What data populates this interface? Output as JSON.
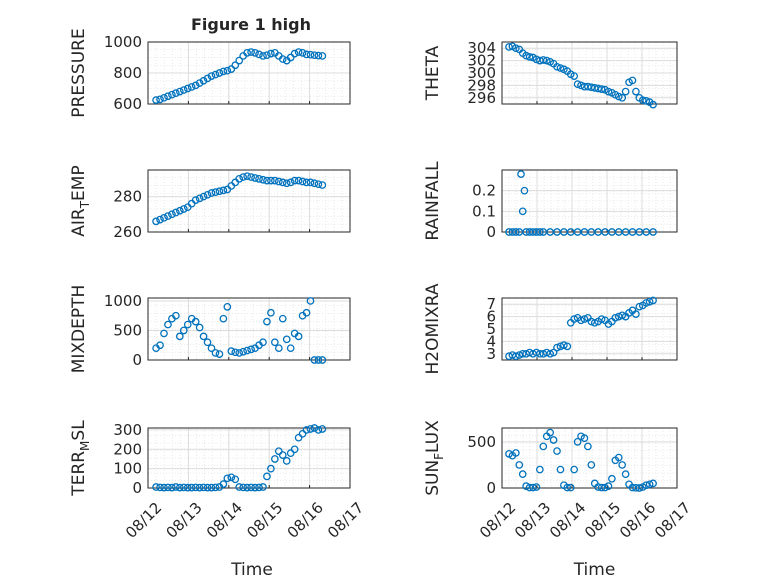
{
  "figure": {
    "title": "Figure 1 high"
  },
  "colors": {
    "marker": "#0072BD",
    "grid": "#dcdcdc",
    "axis": "#262626"
  },
  "chart_data": [
    {
      "type": "scatter",
      "ylabel": "PRESSURE",
      "ylim": [
        600,
        1000
      ],
      "yticks": [
        600,
        800,
        1000
      ],
      "xlim": [
        0,
        5
      ],
      "xticks": [],
      "grid": true,
      "series": [
        {
          "x": [
            0.0,
            0.1,
            0.2,
            0.3,
            0.4,
            0.5,
            0.6,
            0.7,
            0.8,
            0.9,
            1.0,
            1.1,
            1.2,
            1.3,
            1.4,
            1.5,
            1.6,
            1.7,
            1.8,
            1.9,
            2.0,
            2.1,
            2.2,
            2.3,
            2.4,
            2.5,
            2.6,
            2.7,
            2.8,
            2.9,
            3.0,
            3.1,
            3.2,
            3.3,
            3.4,
            3.5,
            3.6,
            3.7,
            3.8,
            3.9,
            4.0,
            4.1,
            4.2
          ],
          "y": [
            625,
            630,
            640,
            650,
            660,
            670,
            680,
            690,
            700,
            710,
            720,
            735,
            750,
            765,
            780,
            790,
            800,
            810,
            815,
            825,
            850,
            880,
            910,
            930,
            935,
            930,
            920,
            910,
            915,
            925,
            930,
            910,
            890,
            880,
            900,
            925,
            935,
            930,
            920,
            918,
            915,
            912,
            910
          ]
        }
      ]
    },
    {
      "type": "scatter",
      "ylabel": "THETA",
      "ylim": [
        295,
        305
      ],
      "yticks": [
        296,
        298,
        300,
        302,
        304
      ],
      "xlim": [
        0,
        5
      ],
      "xticks": [],
      "grid": true,
      "series": [
        {
          "x": [
            0.0,
            0.1,
            0.2,
            0.3,
            0.4,
            0.5,
            0.6,
            0.7,
            0.8,
            0.9,
            1.0,
            1.1,
            1.2,
            1.3,
            1.4,
            1.5,
            1.6,
            1.7,
            1.8,
            1.9,
            2.0,
            2.1,
            2.2,
            2.3,
            2.4,
            2.5,
            2.6,
            2.7,
            2.8,
            2.9,
            3.0,
            3.1,
            3.2,
            3.3,
            3.4,
            3.5,
            3.6,
            3.7,
            3.8,
            3.9,
            4.0,
            4.1,
            4.2
          ],
          "y": [
            304.2,
            304.3,
            304,
            303.8,
            303.2,
            302.8,
            302.6,
            302.5,
            302.2,
            302.0,
            302.1,
            302.0,
            301.8,
            301.5,
            301.0,
            300.8,
            300.6,
            300.3,
            299.8,
            299.5,
            298.2,
            298.0,
            297.8,
            297.8,
            297.7,
            297.6,
            297.5,
            297.4,
            297.3,
            297.0,
            296.8,
            296.5,
            296.2,
            296.0,
            297.0,
            298.5,
            298.8,
            297.0,
            296.0,
            295.6,
            295.5,
            295.3,
            294.9
          ]
        }
      ]
    },
    {
      "type": "scatter",
      "ylabel": "AIR_TEMP",
      "ylim": [
        260,
        295
      ],
      "yticks": [
        260,
        280
      ],
      "xlim": [
        0,
        5
      ],
      "xticks": [],
      "grid": true,
      "series": [
        {
          "x": [
            0.0,
            0.1,
            0.2,
            0.3,
            0.4,
            0.5,
            0.6,
            0.7,
            0.8,
            0.9,
            1.0,
            1.1,
            1.2,
            1.3,
            1.4,
            1.5,
            1.6,
            1.7,
            1.8,
            1.9,
            2.0,
            2.1,
            2.2,
            2.3,
            2.4,
            2.5,
            2.6,
            2.7,
            2.8,
            2.9,
            3.0,
            3.1,
            3.2,
            3.3,
            3.4,
            3.5,
            3.6,
            3.7,
            3.8,
            3.9,
            4.0,
            4.1,
            4.2
          ],
          "y": [
            266,
            267,
            268,
            269,
            270,
            271,
            272,
            273,
            274,
            276,
            278,
            279,
            280,
            281,
            282,
            282.5,
            283,
            283.5,
            284,
            286,
            288,
            290,
            291,
            291.5,
            291,
            290.5,
            290,
            289.5,
            289,
            289,
            289,
            288.5,
            288,
            287.5,
            288,
            289,
            289,
            288.5,
            288,
            288,
            287.5,
            287,
            286.5
          ]
        }
      ]
    },
    {
      "type": "scatter",
      "ylabel": "RAINFALL",
      "ylim": [
        0,
        0.3
      ],
      "yticks": [
        0,
        0.1,
        0.2
      ],
      "xlim": [
        0,
        5
      ],
      "xticks": [],
      "grid": true,
      "series": [
        {
          "x": [
            0.0,
            0.1,
            0.2,
            0.3,
            0.35,
            0.4,
            0.45,
            0.5,
            0.6,
            0.7,
            0.8,
            0.9,
            1.0,
            1.2,
            1.4,
            1.6,
            1.8,
            2.0,
            2.2,
            2.4,
            2.6,
            2.8,
            3.0,
            3.2,
            3.4,
            3.6,
            3.8,
            4.0,
            4.2
          ],
          "y": [
            0,
            0,
            0,
            0,
            0.28,
            0.1,
            0.2,
            0,
            0,
            0,
            0,
            0,
            0,
            0,
            0,
            0,
            0,
            0,
            0,
            0,
            0,
            0,
            0,
            0,
            0,
            0,
            0,
            0,
            0
          ]
        }
      ]
    },
    {
      "type": "scatter",
      "ylabel": "MIXDEPTH",
      "ylim": [
        0,
        1050
      ],
      "yticks": [
        0,
        500,
        1000
      ],
      "xlim": [
        0,
        5
      ],
      "xticks": [],
      "grid": true,
      "series": [
        {
          "x": [
            0.0,
            0.1,
            0.2,
            0.3,
            0.4,
            0.5,
            0.6,
            0.7,
            0.8,
            0.9,
            1.0,
            1.1,
            1.2,
            1.3,
            1.4,
            1.5,
            1.6,
            1.7,
            1.8,
            1.9,
            2.0,
            2.1,
            2.2,
            2.3,
            2.4,
            2.5,
            2.6,
            2.7,
            2.8,
            2.9,
            3.0,
            3.1,
            3.2,
            3.3,
            3.4,
            3.5,
            3.6,
            3.7,
            3.8,
            3.9,
            4.0,
            4.1,
            4.2
          ],
          "y": [
            200,
            250,
            450,
            600,
            700,
            750,
            400,
            500,
            600,
            700,
            650,
            550,
            400,
            300,
            200,
            120,
            100,
            700,
            900,
            150,
            130,
            120,
            140,
            160,
            180,
            200,
            250,
            300,
            650,
            800,
            300,
            200,
            700,
            350,
            200,
            450,
            400,
            750,
            800,
            1000,
            0,
            0,
            0
          ]
        }
      ]
    },
    {
      "type": "scatter",
      "ylabel": "H2OMIXRA",
      "ylim": [
        2.5,
        7.5
      ],
      "yticks": [
        3,
        4,
        5,
        6,
        7
      ],
      "xlim": [
        0,
        5
      ],
      "xticks": [],
      "grid": true,
      "series": [
        {
          "x": [
            0.0,
            0.1,
            0.2,
            0.3,
            0.4,
            0.5,
            0.6,
            0.7,
            0.8,
            0.9,
            1.0,
            1.1,
            1.2,
            1.3,
            1.4,
            1.5,
            1.6,
            1.7,
            1.8,
            1.9,
            2.0,
            2.1,
            2.2,
            2.3,
            2.4,
            2.5,
            2.6,
            2.7,
            2.8,
            2.9,
            3.0,
            3.1,
            3.2,
            3.3,
            3.4,
            3.5,
            3.6,
            3.7,
            3.8,
            3.9,
            4.0,
            4.1,
            4.2
          ],
          "y": [
            2.8,
            2.9,
            2.8,
            2.9,
            3.0,
            3.0,
            3.1,
            3.0,
            3.1,
            3.0,
            3.0,
            3.1,
            3.0,
            3.1,
            3.5,
            3.6,
            3.7,
            3.6,
            5.5,
            5.8,
            5.9,
            5.7,
            5.8,
            5.9,
            5.6,
            5.5,
            5.6,
            5.8,
            5.7,
            5.4,
            5.6,
            5.9,
            6.0,
            6.1,
            6.0,
            6.3,
            6.5,
            6.2,
            6.8,
            6.9,
            7.1,
            7.2,
            7.3
          ]
        }
      ]
    },
    {
      "type": "scatter",
      "ylabel": "TERR_MSL",
      "ylim": [
        0,
        310
      ],
      "yticks": [
        0,
        100,
        200,
        300
      ],
      "xlim": [
        0,
        5
      ],
      "xticks": [
        "08/12",
        "08/13",
        "08/14",
        "08/15",
        "08/16",
        "08/17"
      ],
      "xlabel": "Time",
      "grid": true,
      "series": [
        {
          "x": [
            0.0,
            0.1,
            0.2,
            0.3,
            0.4,
            0.5,
            0.6,
            0.7,
            0.8,
            0.9,
            1.0,
            1.1,
            1.2,
            1.3,
            1.4,
            1.5,
            1.6,
            1.7,
            1.8,
            1.9,
            2.0,
            2.1,
            2.2,
            2.3,
            2.4,
            2.5,
            2.6,
            2.7,
            2.8,
            2.9,
            3.0,
            3.1,
            3.2,
            3.3,
            3.4,
            3.5,
            3.6,
            3.7,
            3.8,
            3.9,
            4.0,
            4.1,
            4.2
          ],
          "y": [
            5,
            3,
            2,
            3,
            2,
            5,
            2,
            3,
            2,
            2,
            3,
            2,
            3,
            2,
            2,
            3,
            5,
            20,
            50,
            55,
            45,
            5,
            3,
            2,
            3,
            2,
            3,
            5,
            60,
            100,
            150,
            190,
            170,
            140,
            180,
            200,
            260,
            280,
            300,
            305,
            310,
            300,
            305
          ]
        }
      ]
    },
    {
      "type": "scatter",
      "ylabel": "SUN_FLUX",
      "ylim": [
        0,
        650
      ],
      "yticks": [
        0,
        500
      ],
      "xlim": [
        0,
        5
      ],
      "xticks": [
        "08/12",
        "08/13",
        "08/14",
        "08/15",
        "08/16",
        "08/17"
      ],
      "xlabel": "Time",
      "grid": true,
      "series": [
        {
          "x": [
            0.0,
            0.1,
            0.2,
            0.3,
            0.4,
            0.5,
            0.6,
            0.7,
            0.8,
            0.9,
            1.0,
            1.1,
            1.2,
            1.3,
            1.4,
            1.5,
            1.6,
            1.7,
            1.8,
            1.9,
            2.0,
            2.1,
            2.2,
            2.3,
            2.4,
            2.5,
            2.6,
            2.7,
            2.8,
            2.9,
            3.0,
            3.1,
            3.2,
            3.3,
            3.4,
            3.5,
            3.6,
            3.7,
            3.8,
            3.9,
            4.0,
            4.1,
            4.2
          ],
          "y": [
            370,
            350,
            380,
            250,
            150,
            20,
            5,
            5,
            10,
            200,
            450,
            560,
            600,
            520,
            400,
            200,
            30,
            5,
            5,
            200,
            500,
            560,
            540,
            450,
            250,
            50,
            10,
            5,
            5,
            20,
            100,
            300,
            330,
            250,
            150,
            40,
            5,
            2,
            0,
            10,
            30,
            40,
            50
          ]
        }
      ]
    }
  ]
}
